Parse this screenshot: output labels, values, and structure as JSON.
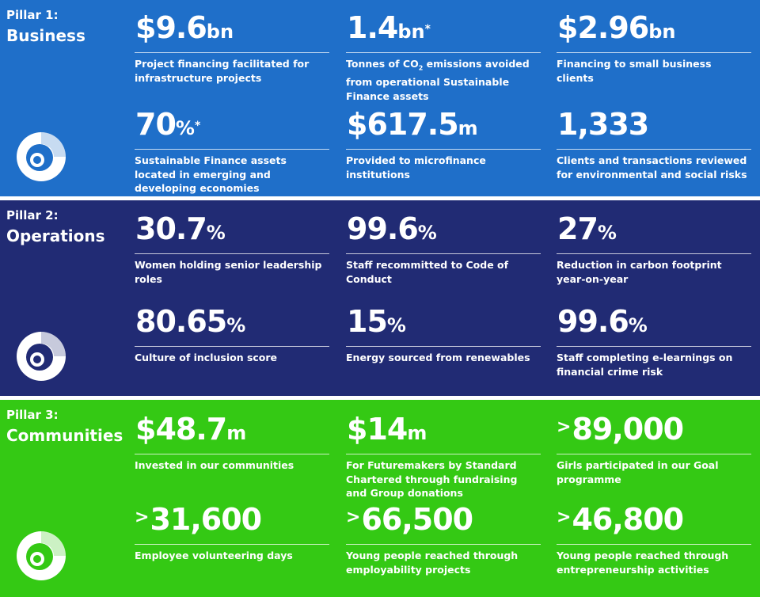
{
  "colors": {
    "business": "#1f6fc9",
    "operations": "#212b74",
    "communities": "#34c914"
  },
  "sections": [
    {
      "pillar": "Pillar 1:",
      "name": "Business",
      "stats": [
        {
          "prefix": "",
          "value": "$9.6",
          "unit": "bn",
          "mark": "",
          "desc": "Project financing facilitated for infrastructure projects"
        },
        {
          "prefix": "",
          "value": "1.4",
          "unit": "bn",
          "mark": "*",
          "desc_a": "Tonnes of CO",
          "desc_sub": "2",
          "desc_b": " emissions avoided from operational Sustainable Finance assets"
        },
        {
          "prefix": "",
          "value": "$2.96",
          "unit": "bn",
          "mark": "",
          "desc": "Financing to small business clients"
        },
        {
          "prefix": "",
          "value": "70",
          "unit": "%",
          "mark": "*",
          "desc": "Sustainable Finance assets located in emerging and developing economies"
        },
        {
          "prefix": "",
          "value": "$617.5",
          "unit": "m",
          "mark": "",
          "desc": "Provided to microfinance institutions"
        },
        {
          "prefix": "",
          "value": "1,333",
          "unit": "",
          "mark": "",
          "desc": "Clients and transactions reviewed for environmental and social risks"
        }
      ]
    },
    {
      "pillar": "Pillar 2:",
      "name": "Operations",
      "stats": [
        {
          "prefix": "",
          "value": "30.7",
          "unit": "%",
          "mark": "",
          "desc": "Women holding senior leadership roles"
        },
        {
          "prefix": "",
          "value": "99.6",
          "unit": "%",
          "mark": "",
          "desc": "Staff recommitted to Code of Conduct"
        },
        {
          "prefix": "",
          "value": "27",
          "unit": "%",
          "mark": "",
          "desc": "Reduction in carbon footprint year-on-year"
        },
        {
          "prefix": "",
          "value": "80.65",
          "unit": "%",
          "mark": "",
          "desc": "Culture of inclusion score"
        },
        {
          "prefix": "",
          "value": "15",
          "unit": "%",
          "mark": "",
          "desc": "Energy sourced from renewables"
        },
        {
          "prefix": "",
          "value": "99.6",
          "unit": "%",
          "mark": "",
          "desc": "Staff completing e-learnings on financial crime risk"
        }
      ]
    },
    {
      "pillar": "Pillar 3:",
      "name": "Communities",
      "stats": [
        {
          "prefix": "",
          "value": "$48.7",
          "unit": "m",
          "mark": "",
          "desc": "Invested in our communities"
        },
        {
          "prefix": "",
          "value": "$14",
          "unit": "m",
          "mark": "",
          "desc": "For Futuremakers by Standard Chartered through fundraising and Group donations"
        },
        {
          "prefix": ">",
          "value": "89,000",
          "unit": "",
          "mark": "",
          "desc": "Girls participated in our Goal programme"
        },
        {
          "prefix": ">",
          "value": "31,600",
          "unit": "",
          "mark": "",
          "desc": "Employee volunteering days"
        },
        {
          "prefix": ">",
          "value": "66,500",
          "unit": "",
          "mark": "",
          "desc": "Young people reached through employability projects"
        },
        {
          "prefix": ">",
          "value": "46,800",
          "unit": "",
          "mark": "",
          "desc": "Young people reached through entrepreneurship activities"
        }
      ]
    }
  ]
}
